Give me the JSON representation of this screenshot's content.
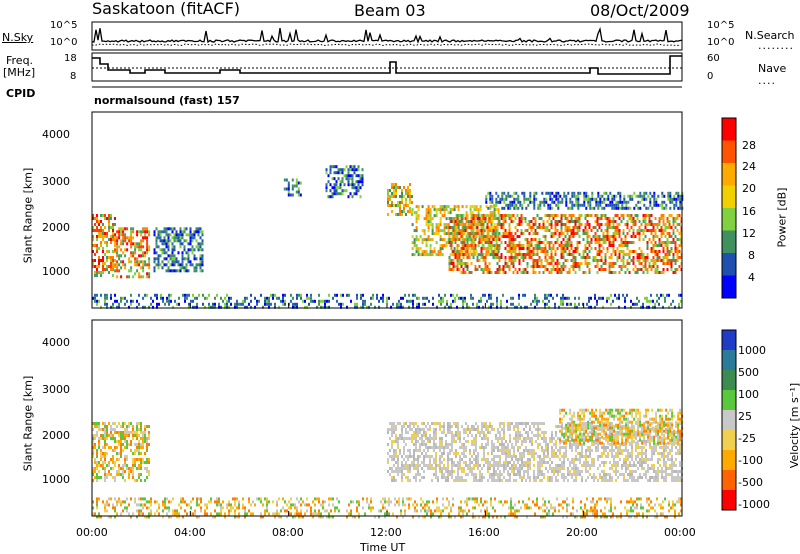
{
  "header": {
    "station": "Saskatoon (fitACF)",
    "beam": "Beam 03",
    "date": "08/Oct/2009"
  },
  "top_panels": {
    "nsky_label": "N.Sky",
    "nsky_ticks": [
      "10^5",
      "10^0"
    ],
    "nsearch_label": "N.Search",
    "nsearch_ticks": [
      "10^5",
      "10^0"
    ],
    "freq_label_line1": "Freq.",
    "freq_label_line2": "[MHz]",
    "freq_ticks": [
      "18",
      "8"
    ],
    "nave_label": "Nave",
    "nave_ticks": [
      "60",
      "0"
    ],
    "cpid_label": "CPID",
    "cpid_value": "normalsound (fast) 157"
  },
  "chart_data": [
    {
      "type": "heatmap",
      "name": "power",
      "ylabel": "Slant Range [km]",
      "yticks": [
        "4000",
        "3000",
        "2000",
        "1000"
      ],
      "ylim": [
        180,
        4600
      ],
      "xlim": [
        0,
        24
      ],
      "colorbar_label": "Power [dB]",
      "colorbar_ticks": [
        "28",
        "24",
        "20",
        "16",
        "12",
        "8",
        "4"
      ],
      "colorbar_colors": [
        "#ff0000",
        "#ff5500",
        "#ffaa00",
        "#f0d000",
        "#80d040",
        "#409060",
        "#1e50b0",
        "#0000ff"
      ],
      "echo_regions": [
        {
          "t0": 0.0,
          "t1": 0.9,
          "r0": 900,
          "r1": 2300,
          "level": "high"
        },
        {
          "t0": 0.9,
          "t1": 2.3,
          "r0": 900,
          "r1": 2000,
          "level": "high"
        },
        {
          "t0": 2.5,
          "t1": 4.5,
          "r0": 1000,
          "r1": 2000,
          "level": "low"
        },
        {
          "t0": 7.8,
          "t1": 8.5,
          "r0": 2700,
          "r1": 3100,
          "level": "low"
        },
        {
          "t0": 9.5,
          "t1": 11.0,
          "r0": 2700,
          "r1": 3400,
          "level": "low"
        },
        {
          "t0": 12.0,
          "t1": 13.0,
          "r0": 2300,
          "r1": 3000,
          "level": "mid"
        },
        {
          "t0": 13.0,
          "t1": 16.5,
          "r0": 1400,
          "r1": 2500,
          "level": "mid"
        },
        {
          "t0": 14.5,
          "t1": 24.0,
          "r0": 1000,
          "r1": 2300,
          "level": "high"
        },
        {
          "t0": 16.0,
          "t1": 24.0,
          "r0": 2400,
          "r1": 2800,
          "level": "low"
        },
        {
          "t0": 0.0,
          "t1": 24.0,
          "r0": 180,
          "r1": 500,
          "level": "low"
        }
      ]
    },
    {
      "type": "heatmap",
      "name": "velocity",
      "ylabel": "Slant Range [km]",
      "yticks": [
        "4000",
        "3000",
        "2000",
        "1000"
      ],
      "ylim": [
        180,
        4600
      ],
      "xlim": [
        0,
        24
      ],
      "xlabel": "Time UT",
      "xticks": [
        "00:00",
        "04:00",
        "08:00",
        "12:00",
        "16:00",
        "20:00",
        "00:00"
      ],
      "colorbar_label": "Velocity [m s⁻¹]",
      "colorbar_ticks": [
        "1000",
        "500",
        "100",
        "25",
        "-25",
        "-100",
        "-500",
        "-1000"
      ],
      "colorbar_colors": [
        "#1e3cc8",
        "#2a7a9a",
        "#3c8c50",
        "#5ac83c",
        "#c8c8c8",
        "#f0d050",
        "#ffaa00",
        "#ff6400",
        "#ff0000"
      ],
      "echo_regions": [
        {
          "t0": 0.0,
          "t1": 2.3,
          "r0": 1000,
          "r1": 2300,
          "level": "orange"
        },
        {
          "t0": 12.0,
          "t1": 24.0,
          "r0": 1000,
          "r1": 2300,
          "level": "grey"
        },
        {
          "t0": 19.0,
          "t1": 24.0,
          "r0": 1800,
          "r1": 2600,
          "level": "orange"
        },
        {
          "t0": 0.0,
          "t1": 24.0,
          "r0": 180,
          "r1": 600,
          "level": "orange"
        }
      ]
    }
  ]
}
